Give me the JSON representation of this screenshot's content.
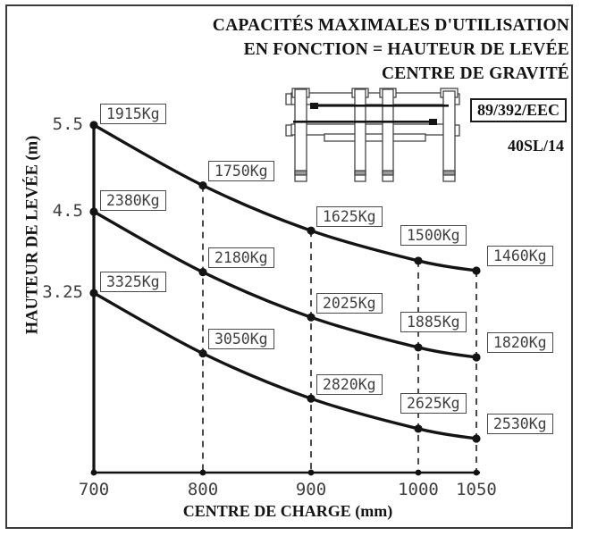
{
  "title": {
    "line1": "CAPACITÉS MAXIMALES D'UTILISATION",
    "line2": "EN FONCTION = HAUTEUR DE LEVÉE",
    "line3": "CENTRE DE GRAVITÉ"
  },
  "standard_badge": "89/392/EEC",
  "model_code": "40SL/14",
  "chart_data": {
    "type": "line",
    "title": "CAPACITÉS MAXIMALES D'UTILISATION EN FONCTION = HAUTEUR DE LEVÉE CENTRE DE GRAVITÉ",
    "xlabel": "CENTRE DE CHARGE (mm)",
    "ylabel": "HAUTEUR DE LEVÉE (m)",
    "x": [
      700,
      800,
      900,
      1000,
      1050
    ],
    "x_tick_labels": [
      "700",
      "800",
      "900",
      "1000",
      "1050"
    ],
    "y_tick_labels": [
      "5.5",
      "4.5",
      "3.25"
    ],
    "xlim": [
      700,
      1050
    ],
    "unit_suffix": "Kg",
    "grid": "vertical-dashed-at-x-ticks",
    "legend": "none",
    "series": [
      {
        "name": "Hauteur de levée 5.5 m",
        "lift_height_m": 5.5,
        "values": [
          1915,
          1750,
          1625,
          1500,
          1460
        ]
      },
      {
        "name": "Hauteur de levée 4.5 m",
        "lift_height_m": 4.5,
        "values": [
          2380,
          2180,
          2025,
          1885,
          1820
        ]
      },
      {
        "name": "Hauteur de levée 3.25 m",
        "lift_height_m": 3.25,
        "values": [
          3325,
          3050,
          2820,
          2625,
          2530
        ]
      }
    ],
    "line_color": "#141414",
    "axis_color": "#1d1d1d",
    "label_box_border_color": "#4a4a4a",
    "cad_text_color": "#3f3f3f"
  }
}
